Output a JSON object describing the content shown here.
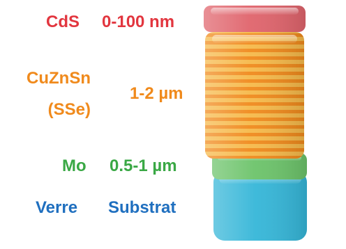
{
  "layers": [
    {
      "id": "cds",
      "name": "CdS",
      "thickness": "0-100 nm",
      "color": "#e2363f"
    },
    {
      "id": "czts",
      "name_lines": [
        "CuZnSn",
        "(SSe)"
      ],
      "thickness": "1-2 µm",
      "color": "#f08a1c"
    },
    {
      "id": "mo",
      "name": "Mo",
      "thickness": "0.5-1 µm",
      "color": "#3aa845"
    },
    {
      "id": "verre",
      "name": "Verre",
      "thickness": "Substrat",
      "color": "#1f6fbf"
    }
  ],
  "block_colors": {
    "cds": "#e0646c",
    "czts_light": "#f6b94a",
    "czts_dark": "#f08a1c",
    "mo": "#6cc36a",
    "glass": "#35b6d8"
  }
}
